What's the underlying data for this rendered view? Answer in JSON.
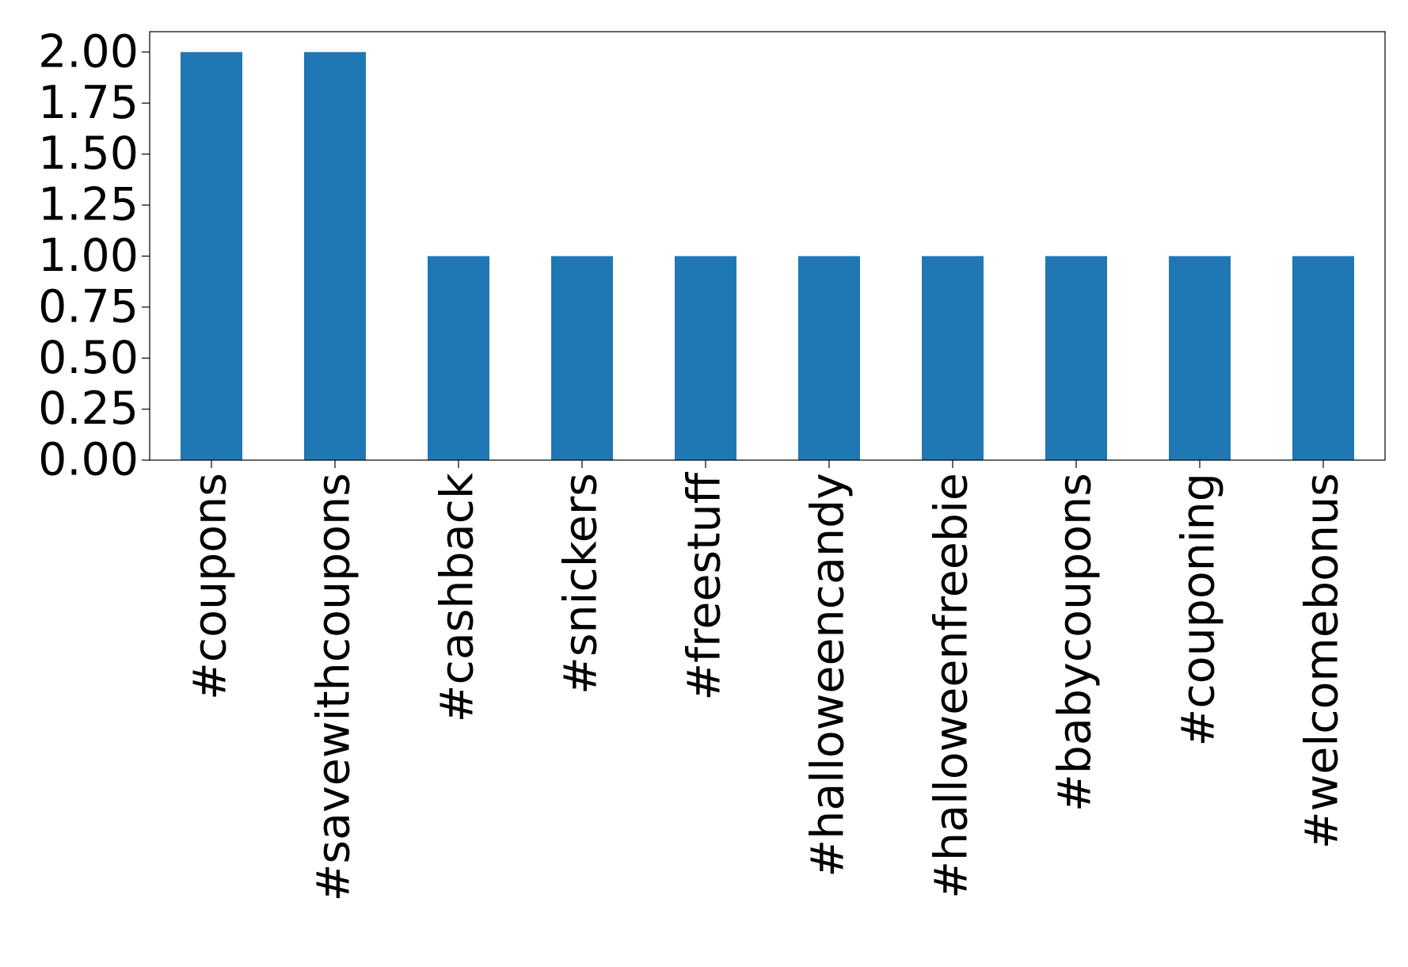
{
  "chart_data": {
    "type": "bar",
    "categories": [
      "#coupons",
      "#savewithcoupons",
      "#cashback",
      "#snickers",
      "#freestuff",
      "#halloweencandy",
      "#halloweenfreebie",
      "#babycoupons",
      "#couponing",
      "#welcomebonus"
    ],
    "values": [
      2,
      2,
      1,
      1,
      1,
      1,
      1,
      1,
      1,
      1
    ],
    "color": "#1f77b4",
    "ylim": [
      0,
      2.1
    ],
    "yticks": [
      {
        "value": 0,
        "label": "0.00"
      },
      {
        "value": 0.25,
        "label": "0.25"
      },
      {
        "value": 0.5,
        "label": "0.50"
      },
      {
        "value": 0.75,
        "label": "0.75"
      },
      {
        "value": 1,
        "label": "1.00"
      },
      {
        "value": 1.25,
        "label": "1.25"
      },
      {
        "value": 1.5,
        "label": "1.50"
      },
      {
        "value": 1.75,
        "label": "1.75"
      },
      {
        "value": 2,
        "label": "2.00"
      }
    ],
    "grid": false
  }
}
